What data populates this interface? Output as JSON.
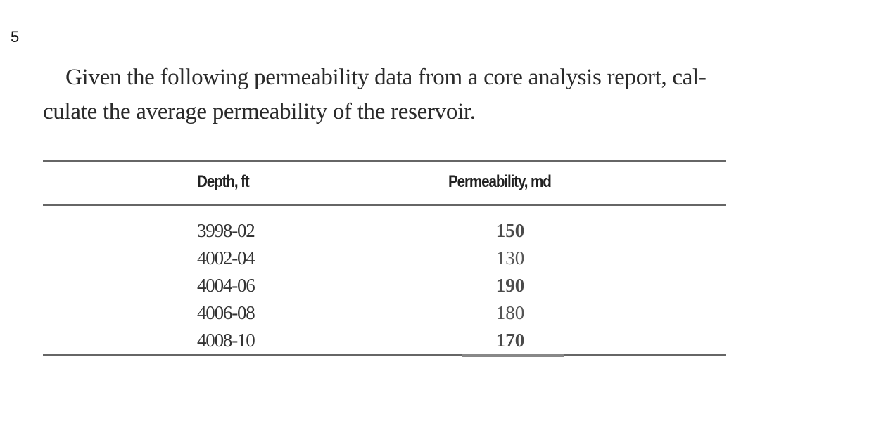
{
  "question": {
    "number": "5",
    "text_line1": "Given the following permeability data from a core analysis report, cal-",
    "text_line2": "culate the average permeability of the reservoir."
  },
  "table": {
    "headers": [
      "Depth, ft",
      "Permeability, md"
    ],
    "rows": [
      {
        "depth": "3998-02",
        "permeability": "150",
        "bold": true
      },
      {
        "depth": "4002-04",
        "permeability": "130",
        "bold": false
      },
      {
        "depth": "4004-06",
        "permeability": "190",
        "bold": true
      },
      {
        "depth": "4006-08",
        "permeability": "180",
        "bold": false
      },
      {
        "depth": "4008-10",
        "permeability": "170",
        "bold": true
      }
    ]
  },
  "colors": {
    "rule": "#666666",
    "text": "#2a2a2a"
  }
}
